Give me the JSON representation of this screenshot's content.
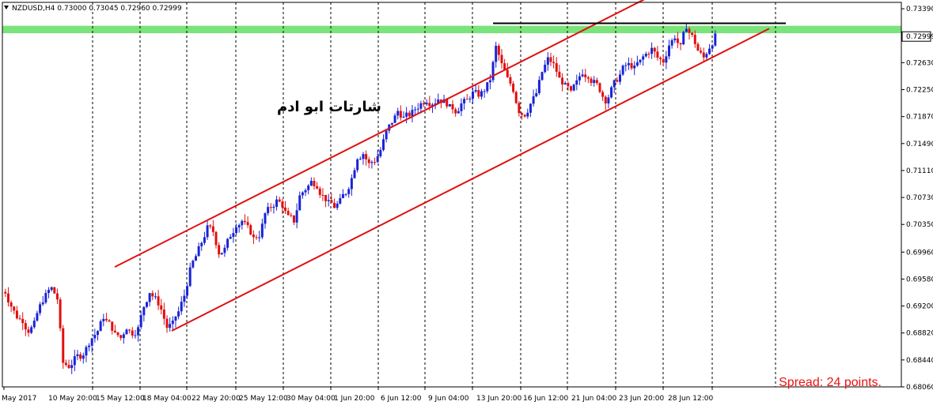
{
  "header": {
    "dropdown_icon": "triangle-down-icon",
    "symbol_text": "NZDUSD,H4  0.73000 0.73045 0.72960 0.72999"
  },
  "watermark": "شارتات ابو ادم",
  "spread_text": "Spread: 24 points.",
  "colors": {
    "bull": "#1a23d6",
    "bear": "#e10f0f",
    "channel": "#e01010",
    "resistance_line": "#000000",
    "zone": "#7be37b",
    "grid": "#000000"
  },
  "chart_data": {
    "type": "candlestick",
    "symbol": "NZDUSD",
    "timeframe": "H4",
    "last_price": "0.72999",
    "ylim": [
      0.6806,
      0.7348
    ],
    "y_ticks": [
      "0.73390",
      "0.72630",
      "0.72250",
      "0.71870",
      "0.71490",
      "0.71110",
      "0.70730",
      "0.70350",
      "0.69960",
      "0.69580",
      "0.69200",
      "0.68820",
      "0.68440",
      "0.68060"
    ],
    "x_ticks": [
      "May 2017",
      "10 May 20:00",
      "15 May 12:00",
      "18 May 04:00",
      "22 May 20:00",
      "25 May 12:00",
      "30 May 04:00",
      "1 Jun 20:00",
      "6 Jun 12:00",
      "9 Jun 04:00",
      "13 Jun 20:00",
      "16 Jun 12:00",
      "21 Jun 04:00",
      "23 Jun 20:00",
      "28 Jun 12:00"
    ],
    "path": [
      0.694,
      0.692,
      0.6905,
      0.69,
      0.6885,
      0.6895,
      0.692,
      0.6935,
      0.6945,
      0.693,
      0.684,
      0.6835,
      0.6845,
      0.685,
      0.686,
      0.6875,
      0.6885,
      0.6905,
      0.6895,
      0.688,
      0.6875,
      0.689,
      0.6882,
      0.6888,
      0.692,
      0.694,
      0.693,
      0.6915,
      0.689,
      0.6895,
      0.6912,
      0.6935,
      0.697,
      0.699,
      0.701,
      0.703,
      0.7025,
      0.6995,
      0.7,
      0.702,
      0.7035,
      0.704,
      0.703,
      0.7015,
      0.702,
      0.705,
      0.706,
      0.7068,
      0.7062,
      0.7045,
      0.704,
      0.7075,
      0.7085,
      0.7095,
      0.709,
      0.7075,
      0.7065,
      0.706,
      0.7068,
      0.708,
      0.71,
      0.713,
      0.7135,
      0.712,
      0.7125,
      0.714,
      0.7165,
      0.718,
      0.7195,
      0.7185,
      0.719,
      0.7198,
      0.7205,
      0.721,
      0.7206,
      0.7212,
      0.7208,
      0.72,
      0.7195,
      0.7205,
      0.721,
      0.722,
      0.7218,
      0.7225,
      0.724,
      0.7285,
      0.726,
      0.724,
      0.7225,
      0.7195,
      0.719,
      0.7205,
      0.722,
      0.725,
      0.7268,
      0.726,
      0.724,
      0.723,
      0.722,
      0.7235,
      0.725,
      0.7245,
      0.7235,
      0.7225,
      0.721,
      0.7225,
      0.724,
      0.7255,
      0.726,
      0.7255,
      0.7265,
      0.7275,
      0.7282,
      0.727,
      0.7265,
      0.7288,
      0.73,
      0.7285,
      0.7315,
      0.73,
      0.728,
      0.727,
      0.7285,
      0.73
    ],
    "channel_upper": [
      [
        0.6975,
        0.736
      ]
    ],
    "channel_lower": [
      [
        0.6885,
        0.7311
      ]
    ],
    "horizontal_line": 0.73185,
    "zone": [
      0.73045,
      0.7315
    ]
  }
}
